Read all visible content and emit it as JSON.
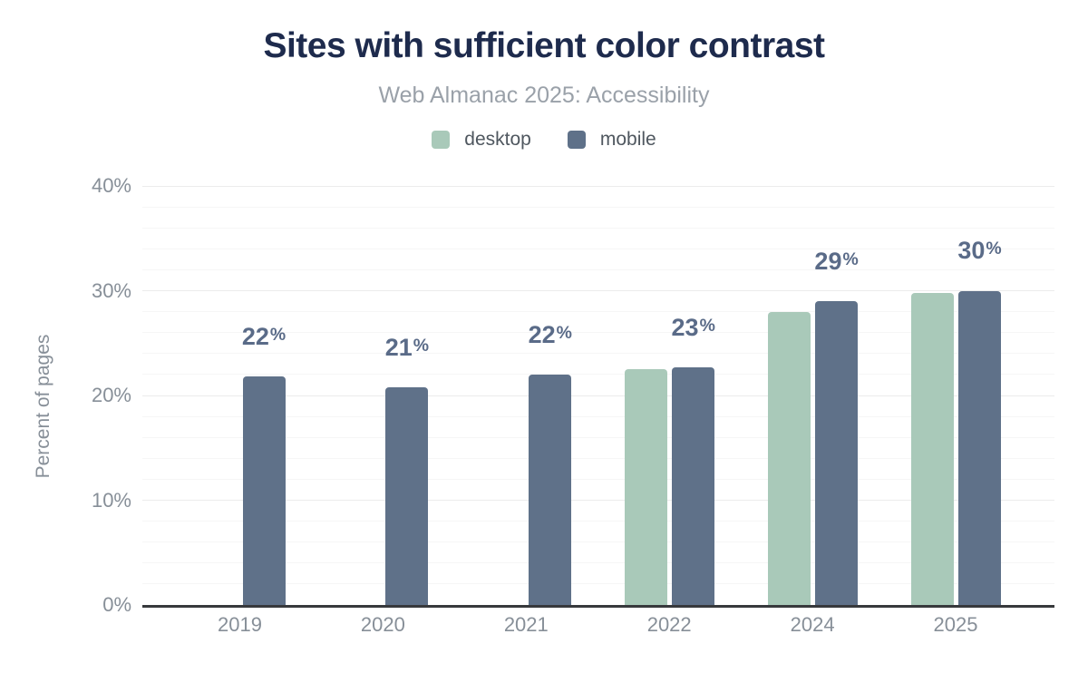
{
  "chart_data": {
    "type": "bar",
    "title": "Sites with sufficient color contrast",
    "subtitle": "Web Almanac 2025: Accessibility",
    "ylabel": "Percent of pages",
    "categories": [
      "2019",
      "2020",
      "2021",
      "2022",
      "2024",
      "2025"
    ],
    "series": [
      {
        "name": "desktop",
        "color": "#a9c9b9",
        "values": [
          null,
          null,
          null,
          22.5,
          28.0,
          29.8
        ]
      },
      {
        "name": "mobile",
        "color": "#5f7189",
        "values": [
          21.8,
          20.8,
          22.0,
          22.7,
          29.0,
          30.0
        ]
      }
    ],
    "value_labels": [
      "22%",
      "21%",
      "22%",
      "23%",
      "29%",
      "30%"
    ],
    "value_label_color": "#5a6b88",
    "ylim": [
      0,
      40
    ],
    "yticks": [
      {
        "value": 0,
        "label": "0%"
      },
      {
        "value": 10,
        "label": "10%"
      },
      {
        "value": 20,
        "label": "20%"
      },
      {
        "value": 30,
        "label": "30%"
      },
      {
        "value": 40,
        "label": "40%"
      }
    ],
    "minor_grid_step": 2,
    "grid": "horizontal",
    "legend_position": "top"
  }
}
